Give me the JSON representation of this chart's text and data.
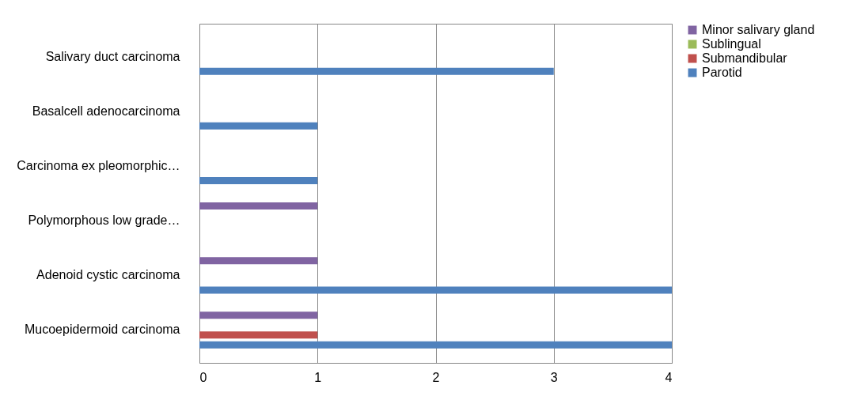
{
  "chart_data": {
    "type": "bar",
    "orientation": "horizontal",
    "categories": [
      "Salivary duct carcinoma",
      "Basalcell adenocarcinoma",
      "Carcinoma ex pleomorphic…",
      "Polymorphous low grade…",
      "Adenoid cystic carcinoma",
      "Mucoepidermoid carcinoma"
    ],
    "series": [
      {
        "name": "Parotid",
        "color": "#4f81bd",
        "values": [
          3,
          1,
          1,
          0,
          4,
          4
        ]
      },
      {
        "name": "Submandibular",
        "color": "#c0504d",
        "values": [
          0,
          0,
          0,
          0,
          0,
          1
        ]
      },
      {
        "name": "Sublingual",
        "color": "#9bbb59",
        "values": [
          0,
          0,
          0,
          0,
          0,
          0
        ]
      },
      {
        "name": "Minor salivary gland",
        "color": "#8064a2",
        "values": [
          0,
          0,
          0,
          1,
          1,
          1
        ]
      }
    ],
    "xlim": [
      0,
      4
    ],
    "xticks": [
      0,
      1,
      2,
      3,
      4
    ],
    "grid": "x",
    "legend": "right"
  }
}
